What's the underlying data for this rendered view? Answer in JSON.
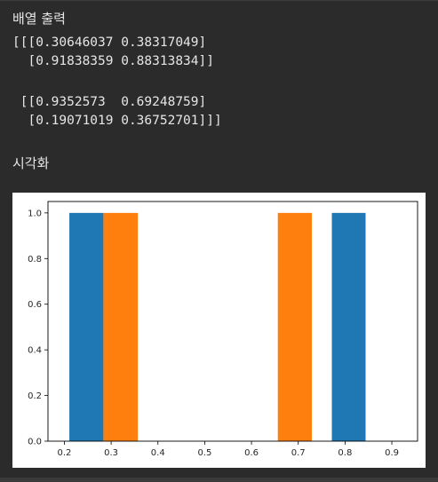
{
  "output": {
    "array_heading": "배열 출력",
    "array_lines": [
      "[[[0.30646037 0.38317049]",
      "  [0.91838359 0.88313834]]",
      "",
      " [[0.9352573  0.69248759]",
      "  [0.19071019 0.36752701]]]"
    ],
    "viz_heading": "시각화"
  },
  "chart_data": {
    "type": "bar",
    "title": "",
    "xlabel": "",
    "ylabel": "",
    "xlim": [
      0.165,
      0.955
    ],
    "ylim": [
      0,
      1.05
    ],
    "x_ticks": [
      "0.2",
      "0.3",
      "0.4",
      "0.5",
      "0.6",
      "0.7",
      "0.8",
      "0.9"
    ],
    "y_ticks": [
      "0.0",
      "0.2",
      "0.4",
      "0.6",
      "0.8",
      "1.0"
    ],
    "series": [
      {
        "color": "#1f77b4",
        "bars": [
          {
            "x_start": 0.2107,
            "x_end": 0.2835,
            "value": 1
          },
          {
            "x_start": 0.7718,
            "x_end": 0.8439,
            "value": 1
          }
        ]
      },
      {
        "color": "#ff7f0e",
        "bars": [
          {
            "x_start": 0.2835,
            "x_end": 0.3571,
            "value": 1
          },
          {
            "x_start": 0.6563,
            "x_end": 0.729,
            "value": 1
          }
        ]
      }
    ]
  }
}
